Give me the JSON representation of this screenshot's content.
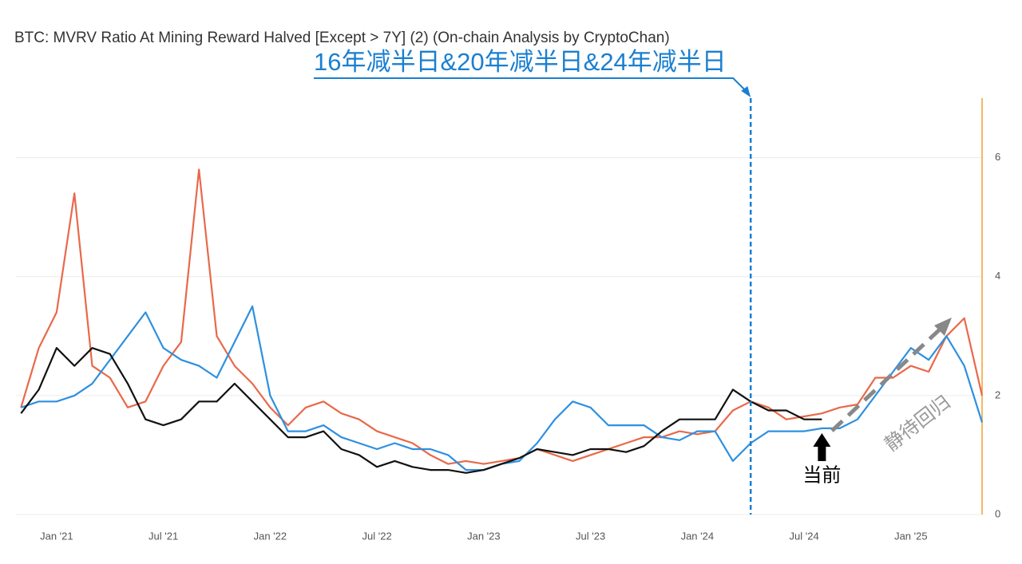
{
  "chart_data": {
    "type": "line",
    "title": "BTC: MVRV Ratio At Mining Reward Halved [Except > 7Y] (2) (On-chain Analysis by CryptoChan)",
    "x": [
      "2020-11",
      "2020-12",
      "2021-01",
      "2021-02",
      "2021-03",
      "2021-04",
      "2021-05",
      "2021-06",
      "2021-07",
      "2021-08",
      "2021-09",
      "2021-10",
      "2021-11",
      "2021-12",
      "2022-01",
      "2022-02",
      "2022-03",
      "2022-04",
      "2022-05",
      "2022-06",
      "2022-07",
      "2022-08",
      "2022-09",
      "2022-10",
      "2022-11",
      "2022-12",
      "2023-01",
      "2023-02",
      "2023-03",
      "2023-04",
      "2023-05",
      "2023-06",
      "2023-07",
      "2023-08",
      "2023-09",
      "2023-10",
      "2023-11",
      "2023-12",
      "2024-01",
      "2024-02",
      "2024-03",
      "2024-04",
      "2024-05",
      "2024-06",
      "2024-07",
      "2024-08",
      "2024-09",
      "2024-10",
      "2024-11",
      "2024-12",
      "2025-01",
      "2025-02",
      "2025-03",
      "2025-04",
      "2025-05"
    ],
    "series": [
      {
        "color": "#e8694a",
        "values": [
          1.8,
          2.8,
          3.4,
          5.4,
          2.5,
          2.3,
          1.8,
          1.9,
          2.5,
          2.9,
          5.8,
          3.0,
          2.5,
          2.2,
          1.8,
          1.5,
          1.8,
          1.9,
          1.7,
          1.6,
          1.4,
          1.3,
          1.2,
          1.0,
          0.85,
          0.9,
          0.85,
          0.9,
          0.95,
          1.1,
          1.0,
          0.9,
          1.0,
          1.1,
          1.2,
          1.3,
          1.3,
          1.4,
          1.35,
          1.4,
          1.75,
          1.9,
          1.8,
          1.6,
          1.65,
          1.7,
          1.8,
          1.85,
          2.3,
          2.3,
          2.5,
          2.4,
          3.0,
          3.3,
          2.0
        ]
      },
      {
        "color": "#2e90e0",
        "values": [
          1.8,
          1.9,
          1.9,
          2.0,
          2.2,
          2.6,
          3.0,
          3.4,
          2.8,
          2.6,
          2.5,
          2.3,
          2.9,
          3.5,
          2.0,
          1.4,
          1.4,
          1.5,
          1.3,
          1.2,
          1.1,
          1.2,
          1.1,
          1.1,
          1.0,
          0.75,
          0.75,
          0.85,
          0.9,
          1.2,
          1.6,
          1.9,
          1.8,
          1.5,
          1.5,
          1.5,
          1.3,
          1.25,
          1.4,
          1.4,
          0.9,
          1.2,
          1.4,
          1.4,
          1.4,
          1.45,
          1.45,
          1.6,
          2.0,
          2.4,
          2.8,
          2.6,
          3.0,
          2.5,
          1.55
        ]
      },
      {
        "color": "#111111",
        "values": [
          1.7,
          2.1,
          2.8,
          2.5,
          2.8,
          2.7,
          2.2,
          1.6,
          1.5,
          1.6,
          1.9,
          1.9,
          2.2,
          1.9,
          1.6,
          1.3,
          1.3,
          1.4,
          1.1,
          1.0,
          0.8,
          0.9,
          0.8,
          0.75,
          0.75,
          0.7,
          0.75,
          0.85,
          0.95,
          1.1,
          1.05,
          1.0,
          1.1,
          1.1,
          1.05,
          1.15,
          1.4,
          1.6,
          1.6,
          1.6,
          2.1,
          1.9,
          1.75,
          1.75,
          1.6,
          1.6,
          null,
          null,
          null,
          null,
          null,
          null,
          null,
          null,
          null
        ]
      }
    ],
    "xlim": [
      "2020-10",
      "2025-05"
    ],
    "xticks": [
      {
        "value": "2021-01",
        "label": "Jan '21"
      },
      {
        "value": "2021-07",
        "label": "Jul '21"
      },
      {
        "value": "2022-01",
        "label": "Jan '22"
      },
      {
        "value": "2022-07",
        "label": "Jul '22"
      },
      {
        "value": "2023-01",
        "label": "Jan '23"
      },
      {
        "value": "2023-07",
        "label": "Jul '23"
      },
      {
        "value": "2024-01",
        "label": "Jan '24"
      },
      {
        "value": "2024-07",
        "label": "Jul '24"
      },
      {
        "value": "2025-01",
        "label": "Jan '25"
      }
    ],
    "ylim": [
      0,
      7
    ],
    "yticks": [
      0,
      2,
      4,
      6
    ],
    "grid": true,
    "annotations": [
      {
        "text": "16年减半日&20年减半日&24年减半日",
        "x": "2024-04"
      },
      {
        "text": "当前",
        "x": "2024-08"
      },
      {
        "text": "静待回归"
      }
    ]
  }
}
